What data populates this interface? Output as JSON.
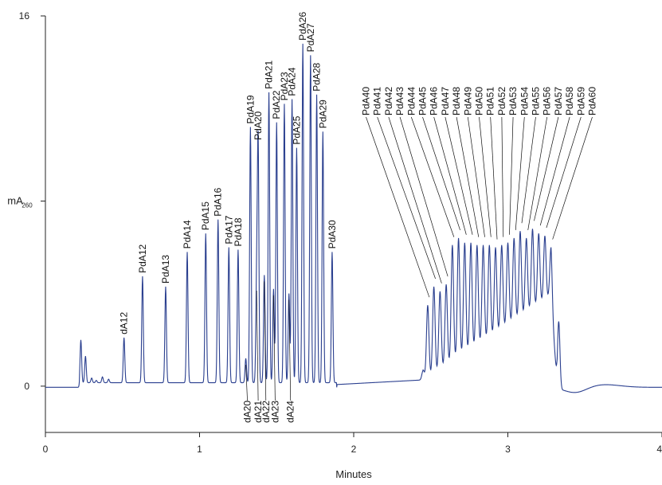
{
  "chart_data": {
    "type": "line",
    "xlabel": "Minutes",
    "ylabel": "mA",
    "ylabel_subscript": "260",
    "xlim": [
      0,
      4
    ],
    "ylim": [
      -2,
      16
    ],
    "x_ticks": [
      0,
      1,
      2,
      3,
      4
    ],
    "y_ticks": [
      {
        "value": 0,
        "label": "0"
      },
      {
        "value": 8,
        "label": "mA",
        "sub": "260"
      },
      {
        "value": 16,
        "label": "16"
      }
    ],
    "grid": false,
    "line_color": "#2a3f8f",
    "peaks": [
      {
        "x": 0.23,
        "y": 2.0
      },
      {
        "x": 0.26,
        "y": 1.3
      },
      {
        "x": 0.3,
        "y": 0.35
      },
      {
        "x": 0.33,
        "y": 0.25
      },
      {
        "x": 0.37,
        "y": 0.4
      },
      {
        "x": 0.41,
        "y": 0.3
      },
      {
        "x": 0.51,
        "y": 2.1,
        "label": "dA12",
        "pos": "above"
      },
      {
        "x": 0.63,
        "y": 4.75,
        "label": "PdA12",
        "pos": "above"
      },
      {
        "x": 0.78,
        "y": 4.3,
        "label": "PdA13",
        "pos": "above"
      },
      {
        "x": 0.92,
        "y": 5.8,
        "label": "PdA14",
        "pos": "above"
      },
      {
        "x": 1.04,
        "y": 6.6,
        "label": "PdA15",
        "pos": "above"
      },
      {
        "x": 1.12,
        "y": 7.2,
        "label": "PdA16",
        "pos": "above"
      },
      {
        "x": 1.19,
        "y": 6.0,
        "label": "PdA17",
        "pos": "above"
      },
      {
        "x": 1.25,
        "y": 5.9,
        "label": "PdA18",
        "pos": "above"
      },
      {
        "x": 1.3,
        "y": 1.2,
        "label": "dA20",
        "pos": "below"
      },
      {
        "x": 1.33,
        "y": 11.2,
        "label": "PdA19",
        "pos": "above"
      },
      {
        "x": 1.37,
        "y": 4.4,
        "label": "dA21",
        "pos": "below"
      },
      {
        "x": 1.38,
        "y": 10.5,
        "label": "PdA20",
        "pos": "above"
      },
      {
        "x": 1.42,
        "y": 4.8,
        "label": "dA22",
        "pos": "below"
      },
      {
        "x": 1.45,
        "y": 12.7,
        "label": "PdA21",
        "pos": "above"
      },
      {
        "x": 1.48,
        "y": 4.2,
        "label": "dA23",
        "pos": "below"
      },
      {
        "x": 1.5,
        "y": 11.4,
        "label": "PdA22",
        "pos": "above"
      },
      {
        "x": 1.55,
        "y": 12.2,
        "label": "PdA23",
        "pos": "above"
      },
      {
        "x": 1.58,
        "y": 4.0,
        "label": "dA24",
        "pos": "below"
      },
      {
        "x": 1.6,
        "y": 12.4,
        "label": "PdA24",
        "pos": "above"
      },
      {
        "x": 1.63,
        "y": 10.3,
        "label": "PdA25",
        "pos": "above"
      },
      {
        "x": 1.67,
        "y": 14.8,
        "label": "PdA26",
        "pos": "above"
      },
      {
        "x": 1.72,
        "y": 14.3,
        "label": "PdA27",
        "pos": "above"
      },
      {
        "x": 1.76,
        "y": 12.6,
        "label": "PdA28",
        "pos": "above"
      },
      {
        "x": 1.8,
        "y": 11.0,
        "label": "PdA29",
        "pos": "above"
      },
      {
        "x": 1.86,
        "y": 5.8,
        "label": "PdA30",
        "pos": "above"
      },
      {
        "x": 2.45,
        "y": 0.7
      },
      {
        "x": 2.48,
        "y": 3.5,
        "label": "PdA40",
        "pos": "above"
      },
      {
        "x": 2.52,
        "y": 4.3,
        "label": "PdA41",
        "pos": "above"
      },
      {
        "x": 2.56,
        "y": 4.1,
        "label": "PdA42",
        "pos": "above"
      },
      {
        "x": 2.6,
        "y": 4.4,
        "label": "PdA43",
        "pos": "above"
      },
      {
        "x": 2.64,
        "y": 6.1,
        "label": "PdA44",
        "pos": "above"
      },
      {
        "x": 2.68,
        "y": 6.4,
        "label": "PdA45",
        "pos": "above"
      },
      {
        "x": 2.72,
        "y": 6.2,
        "label": "PdA46",
        "pos": "above"
      },
      {
        "x": 2.76,
        "y": 6.2,
        "label": "PdA47",
        "pos": "above"
      },
      {
        "x": 2.8,
        "y": 6.1,
        "label": "PdA48",
        "pos": "above"
      },
      {
        "x": 2.84,
        "y": 6.1,
        "label": "PdA49",
        "pos": "above"
      },
      {
        "x": 2.88,
        "y": 6.1,
        "label": "PdA50",
        "pos": "above"
      },
      {
        "x": 2.92,
        "y": 6.0,
        "label": "PdA51",
        "pos": "above"
      },
      {
        "x": 2.96,
        "y": 6.1,
        "label": "PdA52",
        "pos": "above"
      },
      {
        "x": 3.0,
        "y": 6.2,
        "label": "PdA53",
        "pos": "above"
      },
      {
        "x": 3.04,
        "y": 6.4,
        "label": "PdA54",
        "pos": "above"
      },
      {
        "x": 3.08,
        "y": 6.7,
        "label": "PdA55",
        "pos": "above"
      },
      {
        "x": 3.12,
        "y": 6.4,
        "label": "PdA56",
        "pos": "above"
      },
      {
        "x": 3.16,
        "y": 6.8,
        "label": "PdA57",
        "pos": "above"
      },
      {
        "x": 3.2,
        "y": 6.6,
        "label": "PdA58",
        "pos": "above"
      },
      {
        "x": 3.24,
        "y": 6.5,
        "label": "PdA59",
        "pos": "above"
      },
      {
        "x": 3.28,
        "y": 6.0,
        "label": "PdA60",
        "pos": "above"
      },
      {
        "x": 3.33,
        "y": 2.8
      }
    ]
  }
}
